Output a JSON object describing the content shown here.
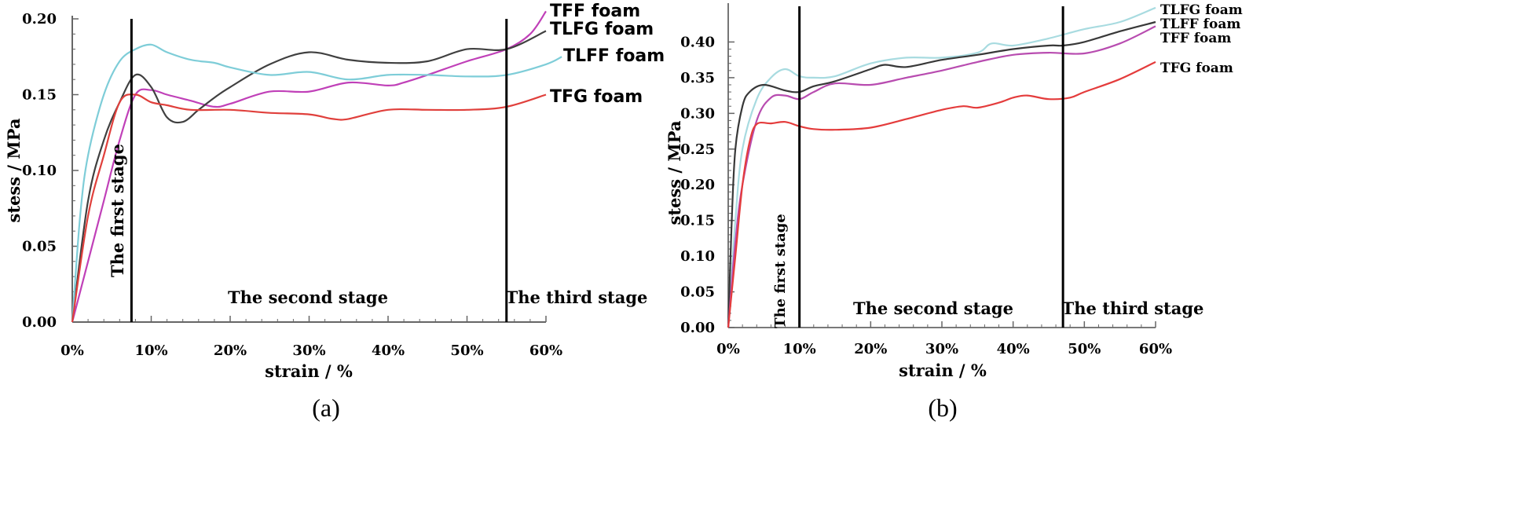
{
  "chart_data": [
    {
      "type": "line",
      "title": "",
      "caption": "(a)",
      "xlabel": "strain / %",
      "ylabel": "stess / MPa",
      "xlim": [
        0,
        60
      ],
      "ylim": [
        0,
        0.2
      ],
      "x_ticks": [
        0,
        10,
        20,
        30,
        40,
        50,
        60
      ],
      "x_tick_labels": [
        "0%",
        "10%",
        "20%",
        "30%",
        "40%",
        "50%",
        "60%"
      ],
      "y_ticks": [
        0,
        0.05,
        0.1,
        0.15,
        0.2
      ],
      "y_tick_labels": [
        "0.00",
        "0.05",
        "0.10",
        "0.15",
        "0.20"
      ],
      "stage_lines": [
        7.5,
        55
      ],
      "stages": [
        "The first stage",
        "The second stage",
        "The third stage"
      ],
      "grid": false,
      "legend": "labels at line ends (right)",
      "series": [
        {
          "name": "TFF foam",
          "color": "#c040b8",
          "x": [
            0,
            2,
            4,
            6,
            8,
            10,
            12,
            15,
            18,
            20,
            25,
            30,
            35,
            40,
            42,
            45,
            50,
            55,
            58,
            60
          ],
          "y": [
            0,
            0.04,
            0.08,
            0.12,
            0.15,
            0.153,
            0.15,
            0.146,
            0.142,
            0.144,
            0.152,
            0.152,
            0.158,
            0.156,
            0.158,
            0.163,
            0.172,
            0.18,
            0.19,
            0.205
          ]
        },
        {
          "name": "TLFG foam",
          "color": "#404040",
          "x": [
            0,
            2,
            4,
            6,
            8,
            10,
            12,
            14,
            16,
            18,
            20,
            25,
            30,
            35,
            40,
            45,
            50,
            55,
            60
          ],
          "y": [
            0,
            0.08,
            0.12,
            0.145,
            0.163,
            0.155,
            0.135,
            0.132,
            0.14,
            0.148,
            0.155,
            0.17,
            0.178,
            0.173,
            0.171,
            0.172,
            0.18,
            0.18,
            0.192
          ]
        },
        {
          "name": "TLFF foam",
          "color": "#7ecdd8",
          "x": [
            0,
            1,
            2,
            4,
            6,
            8,
            10,
            12,
            15,
            18,
            20,
            25,
            30,
            35,
            40,
            45,
            50,
            55,
            60,
            62
          ],
          "y": [
            0,
            0.07,
            0.11,
            0.15,
            0.172,
            0.18,
            0.183,
            0.178,
            0.173,
            0.171,
            0.168,
            0.163,
            0.165,
            0.16,
            0.163,
            0.163,
            0.162,
            0.163,
            0.17,
            0.175
          ]
        },
        {
          "name": "TFG foam",
          "color": "#e0403c",
          "x": [
            0,
            2,
            4,
            6,
            8,
            10,
            12,
            15,
            20,
            25,
            30,
            33,
            35,
            40,
            45,
            50,
            55,
            60
          ],
          "y": [
            0,
            0.07,
            0.11,
            0.145,
            0.15,
            0.145,
            0.143,
            0.14,
            0.14,
            0.138,
            0.137,
            0.134,
            0.134,
            0.14,
            0.14,
            0.14,
            0.142,
            0.15
          ]
        }
      ]
    },
    {
      "type": "line",
      "title": "",
      "caption": "(b)",
      "xlabel": "strain / %",
      "ylabel": "stess / MPa",
      "xlim": [
        0,
        60
      ],
      "ylim": [
        0,
        0.45
      ],
      "x_ticks": [
        0,
        10,
        20,
        30,
        40,
        50,
        60
      ],
      "x_tick_labels": [
        "0%",
        "10%",
        "20%",
        "30%",
        "40%",
        "50%",
        "60%"
      ],
      "y_ticks": [
        0,
        0.05,
        0.1,
        0.15,
        0.2,
        0.25,
        0.3,
        0.35,
        0.4
      ],
      "y_tick_labels": [
        "0.00",
        "0.05",
        "0.10",
        "0.15",
        "0.20",
        "0.25",
        "0.30",
        "0.35",
        "0.40"
      ],
      "stage_lines": [
        10,
        47
      ],
      "stages": [
        "The first stage",
        "The second stage",
        "The third stage"
      ],
      "grid": false,
      "legend": "labels at line ends (right)",
      "series": [
        {
          "name": "TLFG foam",
          "color": "#a8dbe0",
          "x": [
            0,
            1,
            2,
            4,
            6,
            8,
            10,
            12,
            15,
            20,
            25,
            30,
            35,
            37,
            40,
            45,
            50,
            55,
            60
          ],
          "y": [
            0,
            0.15,
            0.25,
            0.32,
            0.35,
            0.362,
            0.352,
            0.35,
            0.352,
            0.37,
            0.378,
            0.378,
            0.385,
            0.398,
            0.395,
            0.405,
            0.418,
            0.428,
            0.448
          ]
        },
        {
          "name": "TLFF foam",
          "color": "#383838",
          "x": [
            0,
            0.5,
            1,
            2,
            3,
            5,
            8,
            10,
            12,
            15,
            20,
            22,
            25,
            30,
            35,
            40,
            45,
            47,
            50,
            55,
            60
          ],
          "y": [
            0,
            0.15,
            0.25,
            0.31,
            0.33,
            0.34,
            0.332,
            0.33,
            0.338,
            0.345,
            0.362,
            0.368,
            0.365,
            0.375,
            0.382,
            0.39,
            0.395,
            0.395,
            0.4,
            0.415,
            0.428
          ]
        },
        {
          "name": "TFF foam",
          "color": "#b84cb0",
          "x": [
            0,
            1,
            2,
            4,
            6,
            8,
            10,
            12,
            15,
            20,
            25,
            30,
            35,
            40,
            45,
            50,
            55,
            60
          ],
          "y": [
            0,
            0.12,
            0.2,
            0.29,
            0.322,
            0.325,
            0.32,
            0.33,
            0.342,
            0.34,
            0.35,
            0.36,
            0.372,
            0.382,
            0.385,
            0.384,
            0.398,
            0.422
          ]
        },
        {
          "name": "TFG foam",
          "color": "#e43c3c",
          "x": [
            0,
            1,
            2,
            3,
            4,
            6,
            8,
            10,
            12,
            15,
            20,
            25,
            30,
            33,
            35,
            38,
            40,
            42,
            45,
            48,
            50,
            55,
            60
          ],
          "y": [
            0,
            0.1,
            0.2,
            0.26,
            0.285,
            0.286,
            0.288,
            0.282,
            0.278,
            0.277,
            0.28,
            0.292,
            0.305,
            0.31,
            0.308,
            0.315,
            0.322,
            0.325,
            0.32,
            0.322,
            0.33,
            0.348,
            0.372
          ]
        }
      ]
    }
  ]
}
